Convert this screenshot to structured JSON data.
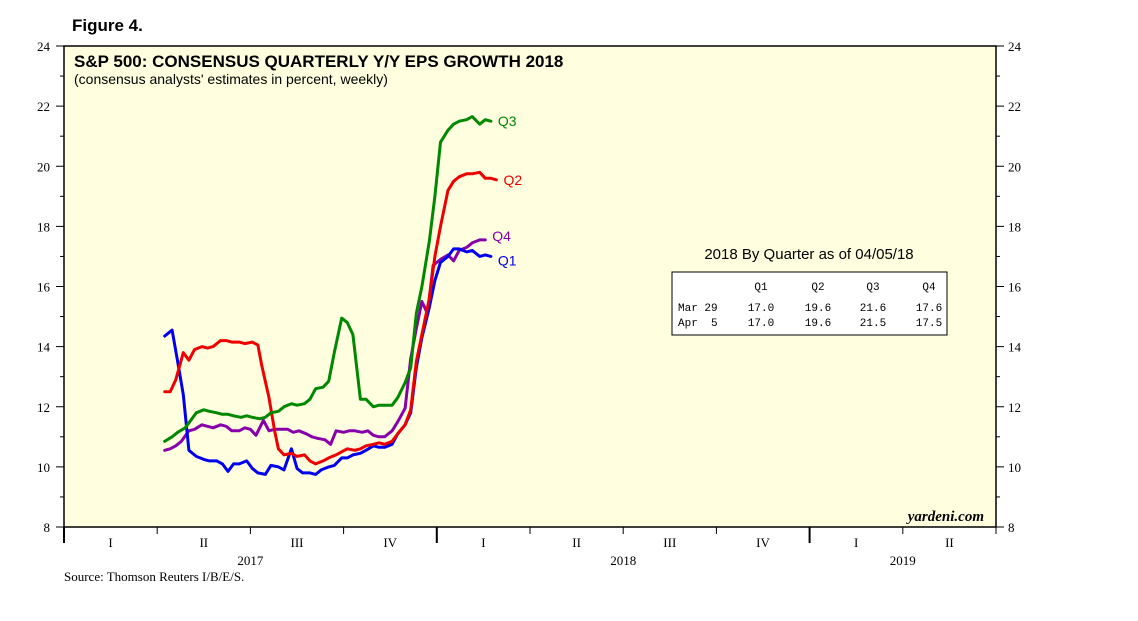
{
  "figure_label": "Figure 4.",
  "source": "Source: Thomson Reuters I/B/E/S.",
  "chart_data": {
    "type": "line",
    "title": "S&P 500: CONSENSUS QUARTERLY Y/Y EPS GROWTH 2018",
    "subtitle": "(consensus analysts' estimates in percent, weekly)",
    "watermark": "yardeni.com",
    "ylim": [
      8,
      24
    ],
    "y_ticks": [
      "8",
      "10",
      "12",
      "14",
      "16",
      "18",
      "20",
      "22",
      "24"
    ],
    "xlim": [
      2017.0,
      2019.5
    ],
    "quarter_ticks": [
      {
        "label": "I",
        "x": 2017.125
      },
      {
        "label": "II",
        "x": 2017.375
      },
      {
        "label": "III",
        "x": 2017.625
      },
      {
        "label": "IV",
        "x": 2017.875
      },
      {
        "label": "I",
        "x": 2018.125
      },
      {
        "label": "II",
        "x": 2018.375
      },
      {
        "label": "III",
        "x": 2018.625
      },
      {
        "label": "IV",
        "x": 2018.875
      },
      {
        "label": "I",
        "x": 2019.125
      },
      {
        "label": "II",
        "x": 2019.375
      }
    ],
    "year_labels": [
      {
        "label": "2017",
        "x": 2017.5
      },
      {
        "label": "2018",
        "x": 2018.5
      },
      {
        "label": "2019",
        "x": 2019.25
      }
    ],
    "series": [
      {
        "name": "Q1",
        "color": "#0000ee",
        "points": [
          [
            2017.27,
            14.35
          ],
          [
            2017.29,
            14.55
          ],
          [
            2017.305,
            13.5
          ],
          [
            2017.32,
            12.4
          ],
          [
            2017.335,
            10.55
          ],
          [
            2017.355,
            10.35
          ],
          [
            2017.375,
            10.25
          ],
          [
            2017.39,
            10.2
          ],
          [
            2017.41,
            10.2
          ],
          [
            2017.425,
            10.1
          ],
          [
            2017.44,
            9.85
          ],
          [
            2017.455,
            10.1
          ],
          [
            2017.47,
            10.1
          ],
          [
            2017.49,
            10.2
          ],
          [
            2017.505,
            9.95
          ],
          [
            2017.52,
            9.8
          ],
          [
            2017.54,
            9.75
          ],
          [
            2017.555,
            10.05
          ],
          [
            2017.575,
            10.0
          ],
          [
            2017.59,
            9.9
          ],
          [
            2017.61,
            10.6
          ],
          [
            2017.625,
            9.95
          ],
          [
            2017.64,
            9.8
          ],
          [
            2017.66,
            9.8
          ],
          [
            2017.675,
            9.75
          ],
          [
            2017.69,
            9.9
          ],
          [
            2017.71,
            10.0
          ],
          [
            2017.725,
            10.05
          ],
          [
            2017.745,
            10.3
          ],
          [
            2017.76,
            10.3
          ],
          [
            2017.775,
            10.4
          ],
          [
            2017.795,
            10.45
          ],
          [
            2017.81,
            10.55
          ],
          [
            2017.83,
            10.7
          ],
          [
            2017.845,
            10.65
          ],
          [
            2017.86,
            10.65
          ],
          [
            2017.88,
            10.75
          ],
          [
            2017.895,
            11.1
          ],
          [
            2017.915,
            11.4
          ],
          [
            2017.93,
            11.8
          ],
          [
            2017.945,
            13.3
          ],
          [
            2017.96,
            14.3
          ],
          [
            2017.98,
            15.3
          ],
          [
            2017.995,
            16.2
          ],
          [
            2018.01,
            16.8
          ],
          [
            2018.03,
            17.0
          ],
          [
            2018.045,
            17.25
          ],
          [
            2018.06,
            17.25
          ],
          [
            2018.08,
            17.15
          ],
          [
            2018.095,
            17.2
          ],
          [
            2018.115,
            17.0
          ],
          [
            2018.13,
            17.05
          ],
          [
            2018.145,
            17.0
          ]
        ]
      },
      {
        "name": "Q2",
        "color": "#ee0000",
        "points": [
          [
            2017.27,
            12.5
          ],
          [
            2017.285,
            12.5
          ],
          [
            2017.3,
            12.9
          ],
          [
            2017.32,
            13.8
          ],
          [
            2017.335,
            13.55
          ],
          [
            2017.35,
            13.9
          ],
          [
            2017.37,
            14.0
          ],
          [
            2017.385,
            13.95
          ],
          [
            2017.4,
            14.0
          ],
          [
            2017.42,
            14.2
          ],
          [
            2017.435,
            14.2
          ],
          [
            2017.45,
            14.15
          ],
          [
            2017.47,
            14.15
          ],
          [
            2017.485,
            14.1
          ],
          [
            2017.505,
            14.15
          ],
          [
            2017.52,
            14.05
          ],
          [
            2017.53,
            13.4
          ],
          [
            2017.55,
            12.3
          ],
          [
            2017.565,
            11.2
          ],
          [
            2017.575,
            10.6
          ],
          [
            2017.59,
            10.4
          ],
          [
            2017.61,
            10.45
          ],
          [
            2017.625,
            10.35
          ],
          [
            2017.645,
            10.4
          ],
          [
            2017.66,
            10.2
          ],
          [
            2017.675,
            10.1
          ],
          [
            2017.695,
            10.2
          ],
          [
            2017.71,
            10.3
          ],
          [
            2017.73,
            10.4
          ],
          [
            2017.745,
            10.5
          ],
          [
            2017.76,
            10.6
          ],
          [
            2017.78,
            10.55
          ],
          [
            2017.795,
            10.6
          ],
          [
            2017.81,
            10.7
          ],
          [
            2017.83,
            10.75
          ],
          [
            2017.845,
            10.8
          ],
          [
            2017.86,
            10.75
          ],
          [
            2017.88,
            10.85
          ],
          [
            2017.895,
            11.1
          ],
          [
            2017.915,
            11.4
          ],
          [
            2017.93,
            11.9
          ],
          [
            2017.945,
            13.5
          ],
          [
            2017.96,
            14.4
          ],
          [
            2017.98,
            15.6
          ],
          [
            2017.995,
            17.0
          ],
          [
            2018.01,
            18.0
          ],
          [
            2018.03,
            19.2
          ],
          [
            2018.045,
            19.5
          ],
          [
            2018.06,
            19.65
          ],
          [
            2018.08,
            19.75
          ],
          [
            2018.095,
            19.75
          ],
          [
            2018.115,
            19.8
          ],
          [
            2018.13,
            19.6
          ],
          [
            2018.145,
            19.6
          ],
          [
            2018.16,
            19.55
          ]
        ]
      },
      {
        "name": "Q3",
        "color": "#008800",
        "points": [
          [
            2017.27,
            10.85
          ],
          [
            2017.29,
            11.0
          ],
          [
            2017.305,
            11.15
          ],
          [
            2017.325,
            11.3
          ],
          [
            2017.34,
            11.55
          ],
          [
            2017.355,
            11.8
          ],
          [
            2017.375,
            11.9
          ],
          [
            2017.39,
            11.85
          ],
          [
            2017.41,
            11.8
          ],
          [
            2017.425,
            11.75
          ],
          [
            2017.44,
            11.75
          ],
          [
            2017.455,
            11.7
          ],
          [
            2017.475,
            11.65
          ],
          [
            2017.49,
            11.7
          ],
          [
            2017.505,
            11.65
          ],
          [
            2017.525,
            11.6
          ],
          [
            2017.54,
            11.65
          ],
          [
            2017.555,
            11.8
          ],
          [
            2017.575,
            11.85
          ],
          [
            2017.59,
            12.0
          ],
          [
            2017.61,
            12.1
          ],
          [
            2017.625,
            12.05
          ],
          [
            2017.645,
            12.1
          ],
          [
            2017.66,
            12.25
          ],
          [
            2017.675,
            12.6
          ],
          [
            2017.695,
            12.65
          ],
          [
            2017.71,
            12.85
          ],
          [
            2017.725,
            13.8
          ],
          [
            2017.745,
            14.95
          ],
          [
            2017.76,
            14.8
          ],
          [
            2017.775,
            14.4
          ],
          [
            2017.795,
            12.25
          ],
          [
            2017.81,
            12.25
          ],
          [
            2017.83,
            12.0
          ],
          [
            2017.845,
            12.05
          ],
          [
            2017.86,
            12.05
          ],
          [
            2017.88,
            12.05
          ],
          [
            2017.895,
            12.3
          ],
          [
            2017.915,
            12.8
          ],
          [
            2017.93,
            13.3
          ],
          [
            2017.945,
            15.1
          ],
          [
            2017.96,
            16.0
          ],
          [
            2017.98,
            17.5
          ],
          [
            2017.995,
            19.0
          ],
          [
            2018.01,
            20.8
          ],
          [
            2018.03,
            21.2
          ],
          [
            2018.045,
            21.4
          ],
          [
            2018.06,
            21.5
          ],
          [
            2018.08,
            21.55
          ],
          [
            2018.095,
            21.65
          ],
          [
            2018.115,
            21.4
          ],
          [
            2018.13,
            21.55
          ],
          [
            2018.145,
            21.5
          ]
        ]
      },
      {
        "name": "Q4",
        "color": "#8800aa",
        "points": [
          [
            2017.27,
            10.55
          ],
          [
            2017.285,
            10.6
          ],
          [
            2017.3,
            10.7
          ],
          [
            2017.315,
            10.85
          ],
          [
            2017.335,
            11.2
          ],
          [
            2017.35,
            11.25
          ],
          [
            2017.37,
            11.4
          ],
          [
            2017.385,
            11.35
          ],
          [
            2017.4,
            11.3
          ],
          [
            2017.42,
            11.4
          ],
          [
            2017.435,
            11.35
          ],
          [
            2017.45,
            11.2
          ],
          [
            2017.47,
            11.2
          ],
          [
            2017.485,
            11.3
          ],
          [
            2017.5,
            11.25
          ],
          [
            2017.515,
            11.05
          ],
          [
            2017.535,
            11.55
          ],
          [
            2017.55,
            11.2
          ],
          [
            2017.565,
            11.25
          ],
          [
            2017.58,
            11.25
          ],
          [
            2017.6,
            11.25
          ],
          [
            2017.615,
            11.15
          ],
          [
            2017.63,
            11.2
          ],
          [
            2017.65,
            11.1
          ],
          [
            2017.665,
            11.0
          ],
          [
            2017.68,
            10.95
          ],
          [
            2017.7,
            10.9
          ],
          [
            2017.715,
            10.75
          ],
          [
            2017.73,
            11.2
          ],
          [
            2017.75,
            11.15
          ],
          [
            2017.765,
            11.2
          ],
          [
            2017.78,
            11.2
          ],
          [
            2017.8,
            11.15
          ],
          [
            2017.815,
            11.2
          ],
          [
            2017.83,
            11.05
          ],
          [
            2017.845,
            11.0
          ],
          [
            2017.86,
            11.0
          ],
          [
            2017.88,
            11.2
          ],
          [
            2017.895,
            11.5
          ],
          [
            2017.915,
            11.95
          ],
          [
            2017.93,
            13.6
          ],
          [
            2017.945,
            14.6
          ],
          [
            2017.96,
            15.5
          ],
          [
            2017.975,
            15.1
          ],
          [
            2017.99,
            16.7
          ],
          [
            2018.01,
            16.9
          ],
          [
            2018.03,
            17.05
          ],
          [
            2018.045,
            16.85
          ],
          [
            2018.06,
            17.2
          ],
          [
            2018.08,
            17.3
          ],
          [
            2018.095,
            17.45
          ],
          [
            2018.115,
            17.55
          ],
          [
            2018.13,
            17.55
          ]
        ]
      }
    ],
    "table": {
      "title": "2018 By Quarter as of 04/05/18",
      "columns": [
        "",
        "Q1",
        "Q2",
        "Q3",
        "Q4"
      ],
      "rows": [
        [
          "Mar 29",
          "17.0",
          "19.6",
          "21.6",
          "17.6"
        ],
        [
          "Apr  5",
          "17.0",
          "19.6",
          "21.5",
          "17.5"
        ]
      ]
    }
  }
}
